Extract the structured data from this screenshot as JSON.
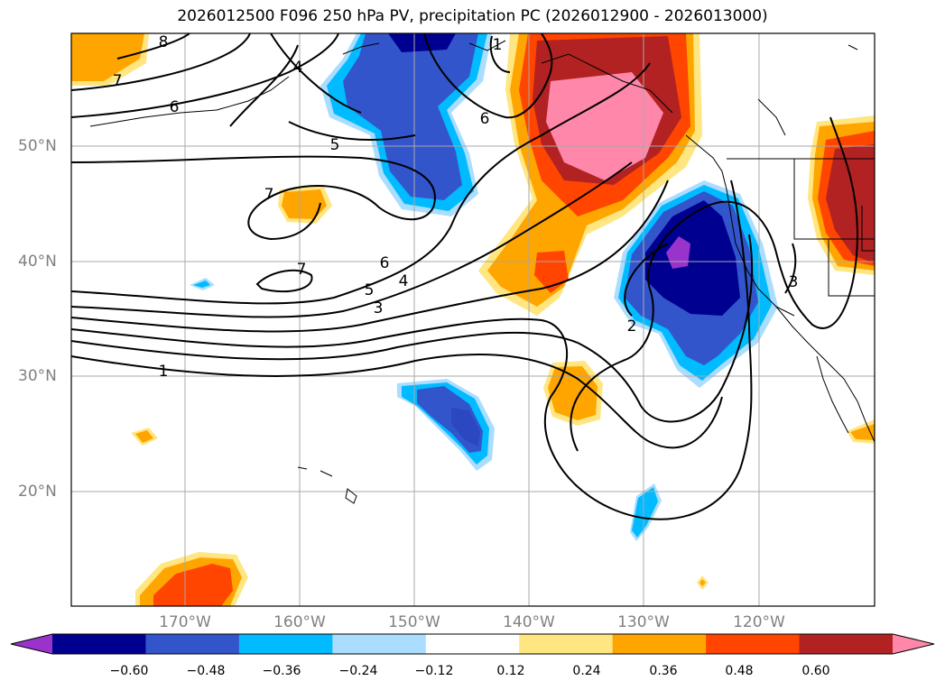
{
  "title": "2026012500 F096 250 hPa PV, precipitation PC (2026012900 - 2026013000)",
  "lat_labels": [
    "50°N",
    "40°N",
    "30°N",
    "20°N"
  ],
  "lon_labels": [
    "170°W",
    "160°W",
    "150°W",
    "140°W",
    "130°W",
    "120°W"
  ],
  "contour_labels": [
    "8",
    "7",
    "6",
    "5",
    "4",
    "7",
    "7",
    "6",
    "5",
    "4",
    "3",
    "1",
    "1",
    "6",
    "2",
    "3"
  ],
  "colorbar": {
    "ticks": [
      "−0.60",
      "−0.48",
      "−0.36",
      "−0.24",
      "−0.12",
      "0.12",
      "0.24",
      "0.36",
      "0.48",
      "0.60"
    ],
    "colors": [
      "#9933cc",
      "#000090",
      "#3355cc",
      "#00bbff",
      "#aaddff",
      "#ffffff",
      "#ffe680",
      "#ffa500",
      "#ff4500",
      "#b22222",
      "#ff88aa"
    ]
  }
}
